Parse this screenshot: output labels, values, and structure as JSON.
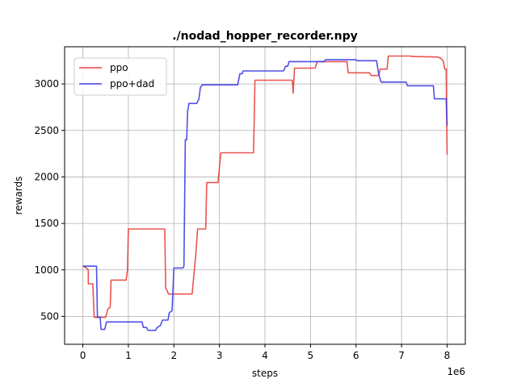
{
  "chart_data": {
    "type": "line",
    "title": "./nodad_hopper_recorder.npy",
    "xlabel": "steps",
    "ylabel": "rewards",
    "x_offset_text": "1e6",
    "xlim": [
      -0.4,
      8.4
    ],
    "ylim": [
      200,
      3400
    ],
    "x_ticks": [
      0,
      1,
      2,
      3,
      4,
      5,
      6,
      7,
      8
    ],
    "y_ticks": [
      500,
      1000,
      1500,
      2000,
      2500,
      3000
    ],
    "grid": true,
    "legend_position": "upper-left",
    "series": [
      {
        "name": "ppo",
        "color": "#e8413d",
        "points": [
          [
            0,
            1040
          ],
          [
            0.08,
            1020
          ],
          [
            0.12,
            1000
          ],
          [
            0.12,
            850
          ],
          [
            0.22,
            850
          ],
          [
            0.25,
            490
          ],
          [
            0.5,
            490
          ],
          [
            0.55,
            580
          ],
          [
            0.6,
            600
          ],
          [
            0.62,
            890
          ],
          [
            0.95,
            890
          ],
          [
            0.98,
            1000
          ],
          [
            1.0,
            1440
          ],
          [
            1.8,
            1440
          ],
          [
            1.82,
            800
          ],
          [
            1.85,
            780
          ],
          [
            1.88,
            740
          ],
          [
            2.4,
            740
          ],
          [
            2.45,
            1000
          ],
          [
            2.48,
            1160
          ],
          [
            2.52,
            1440
          ],
          [
            2.7,
            1440
          ],
          [
            2.72,
            1940
          ],
          [
            2.97,
            1940
          ],
          [
            3.0,
            2100
          ],
          [
            3.03,
            2260
          ],
          [
            3.75,
            2260
          ],
          [
            3.78,
            3040
          ],
          [
            4.6,
            3040
          ],
          [
            4.62,
            2900
          ],
          [
            4.65,
            3170
          ],
          [
            5.1,
            3170
          ],
          [
            5.15,
            3240
          ],
          [
            5.8,
            3240
          ],
          [
            5.83,
            3120
          ],
          [
            6.3,
            3120
          ],
          [
            6.33,
            3090
          ],
          [
            6.5,
            3090
          ],
          [
            6.53,
            3160
          ],
          [
            6.68,
            3160
          ],
          [
            6.71,
            3300
          ],
          [
            7.2,
            3300
          ],
          [
            7.23,
            3295
          ],
          [
            7.8,
            3290
          ],
          [
            7.88,
            3270
          ],
          [
            7.92,
            3240
          ],
          [
            7.95,
            3160
          ],
          [
            7.98,
            3160
          ],
          [
            8.0,
            2240
          ]
        ]
      },
      {
        "name": "ppo+dad",
        "color": "#3c3ce8",
        "points": [
          [
            0,
            1040
          ],
          [
            0.3,
            1040
          ],
          [
            0.32,
            490
          ],
          [
            0.38,
            490
          ],
          [
            0.4,
            360
          ],
          [
            0.48,
            360
          ],
          [
            0.52,
            440
          ],
          [
            1.3,
            440
          ],
          [
            1.33,
            380
          ],
          [
            1.4,
            380
          ],
          [
            1.43,
            350
          ],
          [
            1.6,
            350
          ],
          [
            1.63,
            380
          ],
          [
            1.7,
            400
          ],
          [
            1.75,
            460
          ],
          [
            1.87,
            460
          ],
          [
            1.9,
            540
          ],
          [
            1.96,
            560
          ],
          [
            2.0,
            1020
          ],
          [
            2.2,
            1020
          ],
          [
            2.22,
            1040
          ],
          [
            2.25,
            2400
          ],
          [
            2.28,
            2400
          ],
          [
            2.3,
            2700
          ],
          [
            2.33,
            2790
          ],
          [
            2.5,
            2790
          ],
          [
            2.55,
            2840
          ],
          [
            2.58,
            2960
          ],
          [
            2.62,
            2990
          ],
          [
            3.4,
            2990
          ],
          [
            3.45,
            3110
          ],
          [
            3.5,
            3110
          ],
          [
            3.52,
            3140
          ],
          [
            4.4,
            3140
          ],
          [
            4.42,
            3150
          ],
          [
            4.45,
            3190
          ],
          [
            4.5,
            3190
          ],
          [
            4.53,
            3240
          ],
          [
            5.3,
            3240
          ],
          [
            5.33,
            3260
          ],
          [
            6.0,
            3260
          ],
          [
            6.03,
            3250
          ],
          [
            6.45,
            3250
          ],
          [
            6.5,
            3100
          ],
          [
            6.55,
            3020
          ],
          [
            7.1,
            3020
          ],
          [
            7.13,
            2980
          ],
          [
            7.7,
            2980
          ],
          [
            7.72,
            2840
          ],
          [
            7.98,
            2840
          ],
          [
            8.0,
            2550
          ]
        ]
      }
    ]
  }
}
